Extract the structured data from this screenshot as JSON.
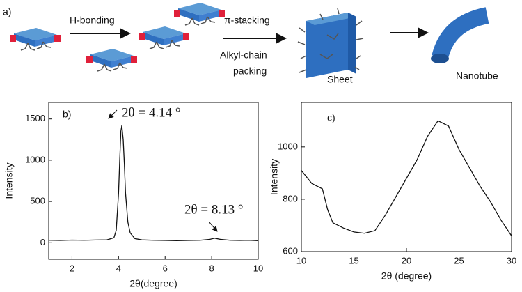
{
  "schematic": {
    "panel_label": "a)",
    "step1": "H-bonding",
    "step2": "π-stacking",
    "step3_lines": [
      "Alkyl-chain",
      "packing"
    ],
    "sheet": "Sheet",
    "nanotube": "Nanotube"
  },
  "chart_data": [
    {
      "type": "line",
      "panel_label": "b)",
      "x_label": "2θ(degree)",
      "y_label": "Intensity",
      "annotations": [
        "2θ = 4.14 °",
        "2θ = 8.13 °"
      ],
      "x": [
        1.0,
        1.5,
        2,
        2.5,
        3,
        3.5,
        3.8,
        3.9,
        4.0,
        4.05,
        4.1,
        4.14,
        4.2,
        4.25,
        4.3,
        4.4,
        4.5,
        4.7,
        5,
        5.5,
        6,
        6.5,
        7,
        7.5,
        7.9,
        8.13,
        8.4,
        8.8,
        9.2,
        9.6,
        10
      ],
      "series": [
        {
          "color": "#111111",
          "values": [
            30,
            28,
            32,
            30,
            33,
            35,
            60,
            150,
            600,
            1000,
            1350,
            1420,
            1250,
            950,
            600,
            250,
            120,
            50,
            35,
            30,
            28,
            25,
            28,
            30,
            40,
            55,
            40,
            30,
            28,
            30,
            25
          ]
        }
      ],
      "xlim": [
        1,
        10
      ],
      "xticks": [
        2,
        4,
        6,
        8,
        10
      ],
      "ylim": [
        -200,
        1700
      ],
      "yticks": [
        0,
        500,
        1000,
        1500
      ]
    },
    {
      "type": "line",
      "panel_label": "c)",
      "x_label": "2θ (degree)",
      "y_label": "Intensity",
      "x": [
        10,
        11,
        12,
        12.5,
        13,
        14,
        15,
        16,
        17,
        18,
        19,
        20,
        21,
        22,
        23,
        24,
        25,
        26,
        27,
        28,
        29,
        30
      ],
      "series": [
        {
          "color": "#111111",
          "values": [
            910,
            860,
            840,
            760,
            710,
            690,
            675,
            670,
            680,
            740,
            810,
            880,
            950,
            1040,
            1100,
            1080,
            990,
            920,
            850,
            790,
            720,
            660
          ]
        }
      ],
      "xlim": [
        10,
        30
      ],
      "xticks": [
        10,
        15,
        20,
        25,
        30
      ],
      "ylim": [
        600,
        1170
      ],
      "yticks": [
        600,
        800,
        1000
      ]
    }
  ]
}
